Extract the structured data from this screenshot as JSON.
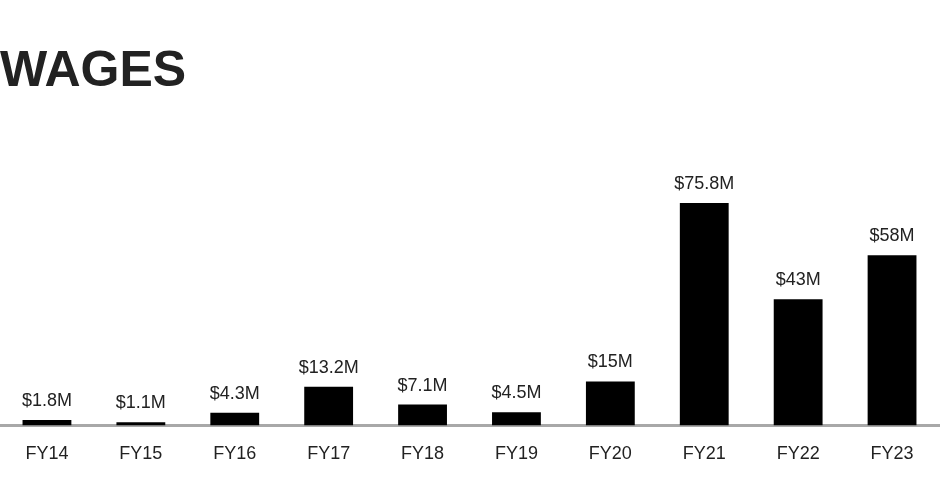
{
  "chart_data": {
    "type": "bar",
    "title": "WAGES",
    "categories": [
      "FY14",
      "FY15",
      "FY16",
      "FY17",
      "FY18",
      "FY19",
      "FY20",
      "FY21",
      "FY22",
      "FY23"
    ],
    "values": [
      1.8,
      1.1,
      4.3,
      13.2,
      7.1,
      4.5,
      15,
      75.8,
      43,
      58
    ],
    "value_labels": [
      "$1.8M",
      "$1.1M",
      "$4.3M",
      "$13.2M",
      "$7.1M",
      "$4.5M",
      "$15M",
      "$75.8M",
      "$43M",
      "$58M"
    ],
    "color": "#000000",
    "ylim": [
      0,
      100
    ],
    "grid": false,
    "data_labels": true,
    "tick_labels": "x"
  }
}
